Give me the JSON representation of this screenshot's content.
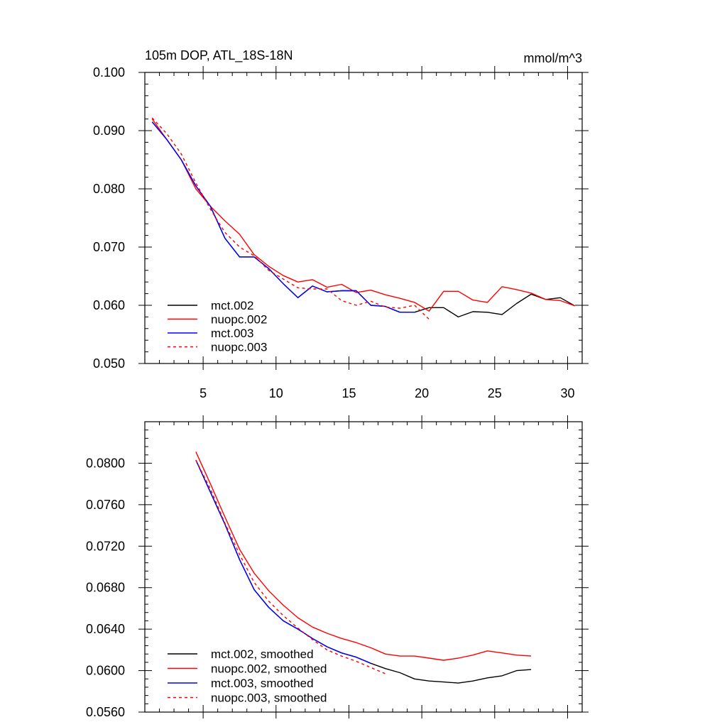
{
  "chart_data": [
    {
      "type": "line",
      "title": "105m DOP, ATL_18S-18N",
      "units": "mmol/m^3",
      "xlim": [
        1,
        31
      ],
      "ylim": [
        0.05,
        0.1
      ],
      "x_major_ticks": [
        5,
        10,
        15,
        20,
        25,
        30
      ],
      "x_tick_labels": [
        "5",
        "10",
        "15",
        "20",
        "25",
        "30"
      ],
      "y_major_ticks": [
        0.05,
        0.06,
        0.07,
        0.08,
        0.09,
        0.1
      ],
      "y_tick_labels": [
        "0.050",
        "0.060",
        "0.070",
        "0.080",
        "0.090",
        "0.100"
      ],
      "legend_position": "bottom-left",
      "series": [
        {
          "name": "mct.002",
          "color": "#000000",
          "dash": "solid",
          "x": [
            1.5,
            2.5,
            3.5,
            4.5,
            5.5,
            6.5,
            7.5,
            8.5,
            9.5,
            10.5,
            11.5,
            12.5,
            13.5,
            14.5,
            15.5,
            16.5,
            17.5,
            18.5,
            19.5,
            20.5,
            21.5,
            22.5,
            23.5,
            24.5,
            25.5,
            26.5,
            27.5,
            28.5,
            29.5,
            30.5
          ],
          "y": [
            0.0915,
            0.0885,
            0.085,
            0.0805,
            0.077,
            0.0715,
            0.0683,
            0.0683,
            0.0663,
            0.0637,
            0.0613,
            0.0633,
            0.0623,
            0.0625,
            0.0625,
            0.06,
            0.0598,
            0.0588,
            0.0588,
            0.0596,
            0.0596,
            0.058,
            0.0589,
            0.0588,
            0.0584,
            0.0603,
            0.0619,
            0.061,
            0.0613,
            0.0599
          ]
        },
        {
          "name": "nuopc.002",
          "color": "#ff0000",
          "dash": "solid",
          "x": [
            1.5,
            2.5,
            3.5,
            4.5,
            5.5,
            6.5,
            7.5,
            8.5,
            9.5,
            10.5,
            11.5,
            12.5,
            13.5,
            14.5,
            15.5,
            16.5,
            17.5,
            18.5,
            19.5,
            20.5,
            21.5,
            22.5,
            23.5,
            24.5,
            25.5,
            26.5,
            27.5,
            28.5,
            29.5,
            30.5
          ],
          "y": [
            0.092,
            0.0885,
            0.085,
            0.08,
            0.077,
            0.0745,
            0.0722,
            0.0687,
            0.0667,
            0.0651,
            0.064,
            0.0644,
            0.0631,
            0.0636,
            0.0622,
            0.0626,
            0.0618,
            0.0612,
            0.0605,
            0.059,
            0.0624,
            0.0624,
            0.0609,
            0.0605,
            0.0632,
            0.0627,
            0.0621,
            0.061,
            0.0608,
            0.0599
          ]
        },
        {
          "name": "mct.003",
          "color": "#0000ff",
          "dash": "solid",
          "x": [
            1.5,
            2.5,
            3.5,
            4.5,
            5.5,
            6.5,
            7.5,
            8.5,
            9.5,
            10.5,
            11.5,
            12.5,
            13.5,
            14.5,
            15.5,
            16.5,
            17.5,
            18.5,
            19.5
          ],
          "y": [
            0.0915,
            0.0885,
            0.085,
            0.0805,
            0.077,
            0.0715,
            0.0683,
            0.0683,
            0.0663,
            0.0637,
            0.0613,
            0.0633,
            0.0623,
            0.0625,
            0.0625,
            0.06,
            0.0598,
            0.0588,
            0.0588
          ]
        },
        {
          "name": "nuopc.003",
          "color": "#ff0000",
          "dash": "dashed",
          "x": [
            1.5,
            2.5,
            3.5,
            4.5,
            5.5,
            6.5,
            7.5,
            8.5,
            9.5,
            10.5,
            11.5,
            12.5,
            13.5,
            14.5,
            15.5,
            16.5,
            17.5,
            18.5,
            19.5,
            20.5
          ],
          "y": [
            0.0922,
            0.0895,
            0.086,
            0.081,
            0.0765,
            0.0725,
            0.07,
            0.0685,
            0.066,
            0.0645,
            0.063,
            0.0628,
            0.0628,
            0.0608,
            0.06,
            0.0607,
            0.0597,
            0.0595,
            0.06,
            0.0576
          ]
        }
      ]
    },
    {
      "type": "line",
      "xlim": [
        1,
        31
      ],
      "ylim": [
        0.056,
        0.084
      ],
      "x_major_ticks": [
        5,
        10,
        15,
        20,
        25,
        30
      ],
      "x_tick_labels": [],
      "y_major_ticks": [
        0.056,
        0.06,
        0.064,
        0.068,
        0.072,
        0.076,
        0.08
      ],
      "y_tick_labels": [
        "0.0560",
        "0.0600",
        "0.0640",
        "0.0680",
        "0.0720",
        "0.0760",
        "0.0800"
      ],
      "legend_position": "bottom-left",
      "series": [
        {
          "name": "mct.002, smoothed",
          "color": "#000000",
          "dash": "solid",
          "x": [
            4.5,
            5.5,
            6.5,
            7.5,
            8.5,
            9.5,
            10.5,
            11.5,
            12.5,
            13.5,
            14.5,
            15.5,
            16.5,
            17.5,
            18.5,
            19.5,
            20.5,
            21.5,
            22.5,
            23.5,
            24.5,
            25.5,
            26.5,
            27.5
          ],
          "y": [
            0.0803,
            0.0772,
            0.0741,
            0.0707,
            0.0678,
            0.0661,
            0.0648,
            0.064,
            0.0631,
            0.0623,
            0.0617,
            0.0613,
            0.0607,
            0.0602,
            0.0598,
            0.0592,
            0.059,
            0.0589,
            0.0588,
            0.059,
            0.0593,
            0.0595,
            0.06,
            0.0601
          ]
        },
        {
          "name": "nuopc.002, smoothed",
          "color": "#ff0000",
          "dash": "solid",
          "x": [
            4.5,
            5.5,
            6.5,
            7.5,
            8.5,
            9.5,
            10.5,
            11.5,
            12.5,
            13.5,
            14.5,
            15.5,
            16.5,
            17.5,
            18.5,
            19.5,
            20.5,
            21.5,
            22.5,
            23.5,
            24.5,
            25.5,
            26.5,
            27.5
          ],
          "y": [
            0.0811,
            0.078,
            0.0748,
            0.0717,
            0.0694,
            0.0677,
            0.0663,
            0.0651,
            0.0642,
            0.0636,
            0.0631,
            0.0627,
            0.0622,
            0.0616,
            0.0614,
            0.0614,
            0.0612,
            0.061,
            0.0612,
            0.0615,
            0.0619,
            0.0617,
            0.0615,
            0.0614
          ]
        },
        {
          "name": "mct.003, smoothed",
          "color": "#0000ff",
          "dash": "solid",
          "x": [
            4.5,
            5.5,
            6.5,
            7.5,
            8.5,
            9.5,
            10.5,
            11.5,
            12.5,
            13.5,
            14.5,
            15.5,
            16.5
          ],
          "y": [
            0.0803,
            0.0772,
            0.0741,
            0.0707,
            0.0678,
            0.0661,
            0.0648,
            0.064,
            0.0631,
            0.0623,
            0.0617,
            0.0613,
            0.0607
          ]
        },
        {
          "name": "nuopc.003, smoothed",
          "color": "#ff0000",
          "dash": "dashed",
          "x": [
            4.5,
            5.5,
            6.5,
            7.5,
            8.5,
            9.5,
            10.5,
            11.5,
            12.5,
            13.5,
            14.5,
            15.5,
            16.5,
            17.5
          ],
          "y": [
            0.0803,
            0.0775,
            0.0742,
            0.0712,
            0.0685,
            0.0667,
            0.0653,
            0.0641,
            0.063,
            0.062,
            0.0614,
            0.0609,
            0.0603,
            0.0597
          ]
        }
      ]
    }
  ]
}
